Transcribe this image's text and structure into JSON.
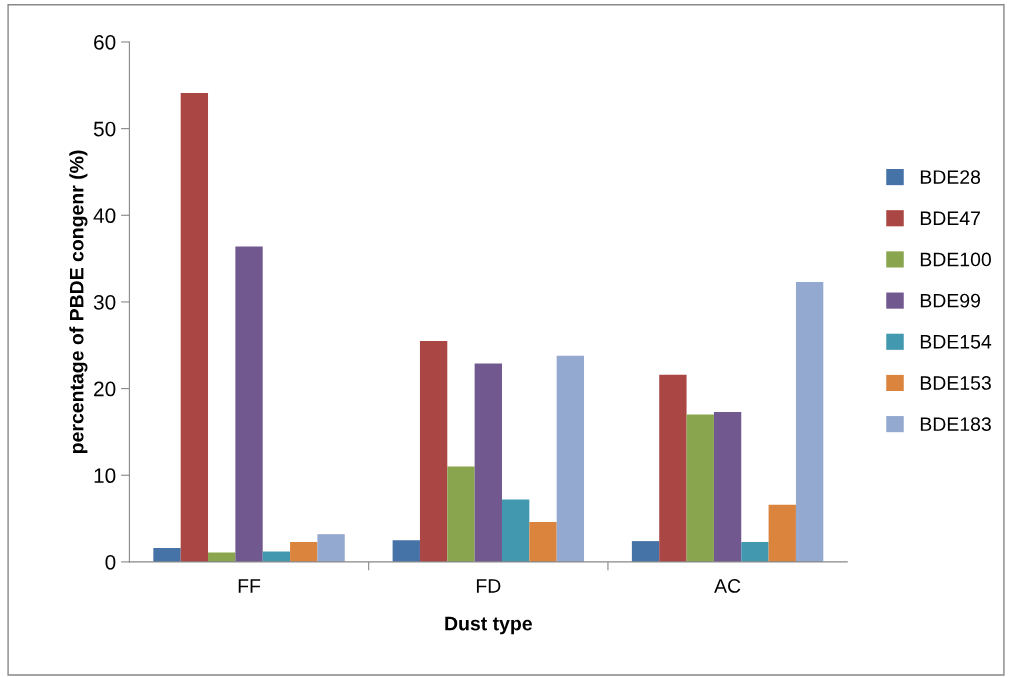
{
  "chart_data": {
    "type": "bar",
    "xlabel": "Dust type",
    "ylabel": "percentage of PBDE congenr (%)",
    "categories": [
      "FF",
      "FD",
      "AC"
    ],
    "series": [
      {
        "name": "BDE28",
        "color": "#4572a7",
        "values": [
          1.6,
          2.5,
          2.4
        ]
      },
      {
        "name": "BDE47",
        "color": "#aa4643",
        "values": [
          54.1,
          25.5,
          21.6
        ]
      },
      {
        "name": "BDE100",
        "color": "#89a54e",
        "values": [
          1.1,
          11.0,
          17.0
        ]
      },
      {
        "name": "BDE99",
        "color": "#71588f",
        "values": [
          36.4,
          22.9,
          17.3
        ]
      },
      {
        "name": "BDE154",
        "color": "#4198af",
        "values": [
          1.2,
          7.2,
          2.3
        ]
      },
      {
        "name": "BDE153",
        "color": "#db843d",
        "values": [
          2.3,
          4.6,
          6.6
        ]
      },
      {
        "name": "BDE183",
        "color": "#93a9cf",
        "values": [
          3.2,
          23.8,
          32.3
        ]
      }
    ],
    "ylim": [
      0,
      60
    ],
    "yticks": [
      0,
      10,
      20,
      30,
      40,
      50,
      60
    ],
    "grid": false,
    "legend": "right"
  }
}
